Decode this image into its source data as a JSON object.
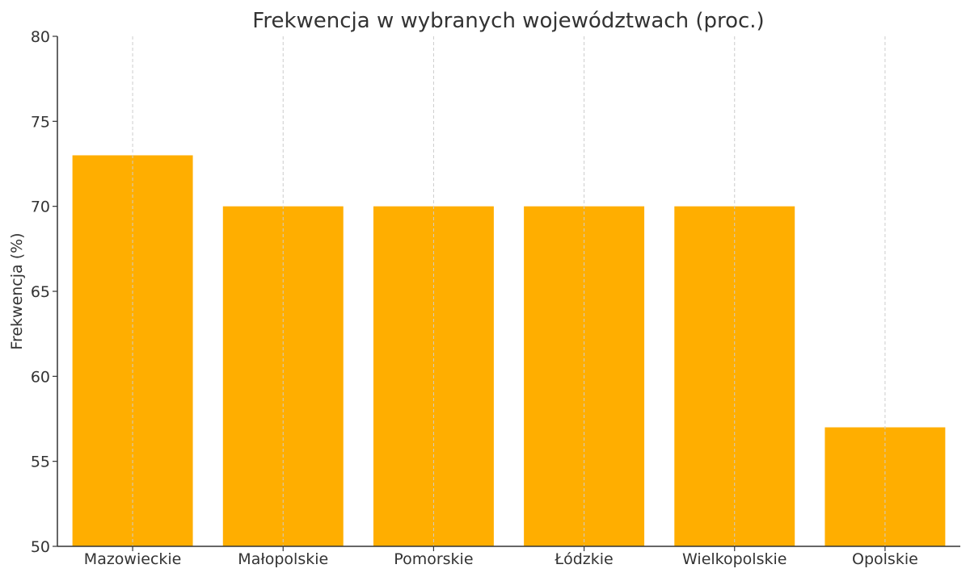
{
  "chart_data": {
    "type": "bar",
    "title": "Frekwencja w wybranych województwach (proc.)",
    "xlabel": "",
    "ylabel": "Frekwencja (%)",
    "categories": [
      "Mazowieckie",
      "Małopolskie",
      "Pomorskie",
      "Łódzkie",
      "Wielkopolskie",
      "Opolskie"
    ],
    "values": [
      73,
      70,
      70,
      70,
      70,
      57
    ],
    "ylim": [
      50,
      80
    ],
    "yticks": [
      50,
      55,
      60,
      65,
      70,
      75,
      80
    ],
    "grid": "vertical dashed",
    "bar_color": "#FFAE00"
  }
}
